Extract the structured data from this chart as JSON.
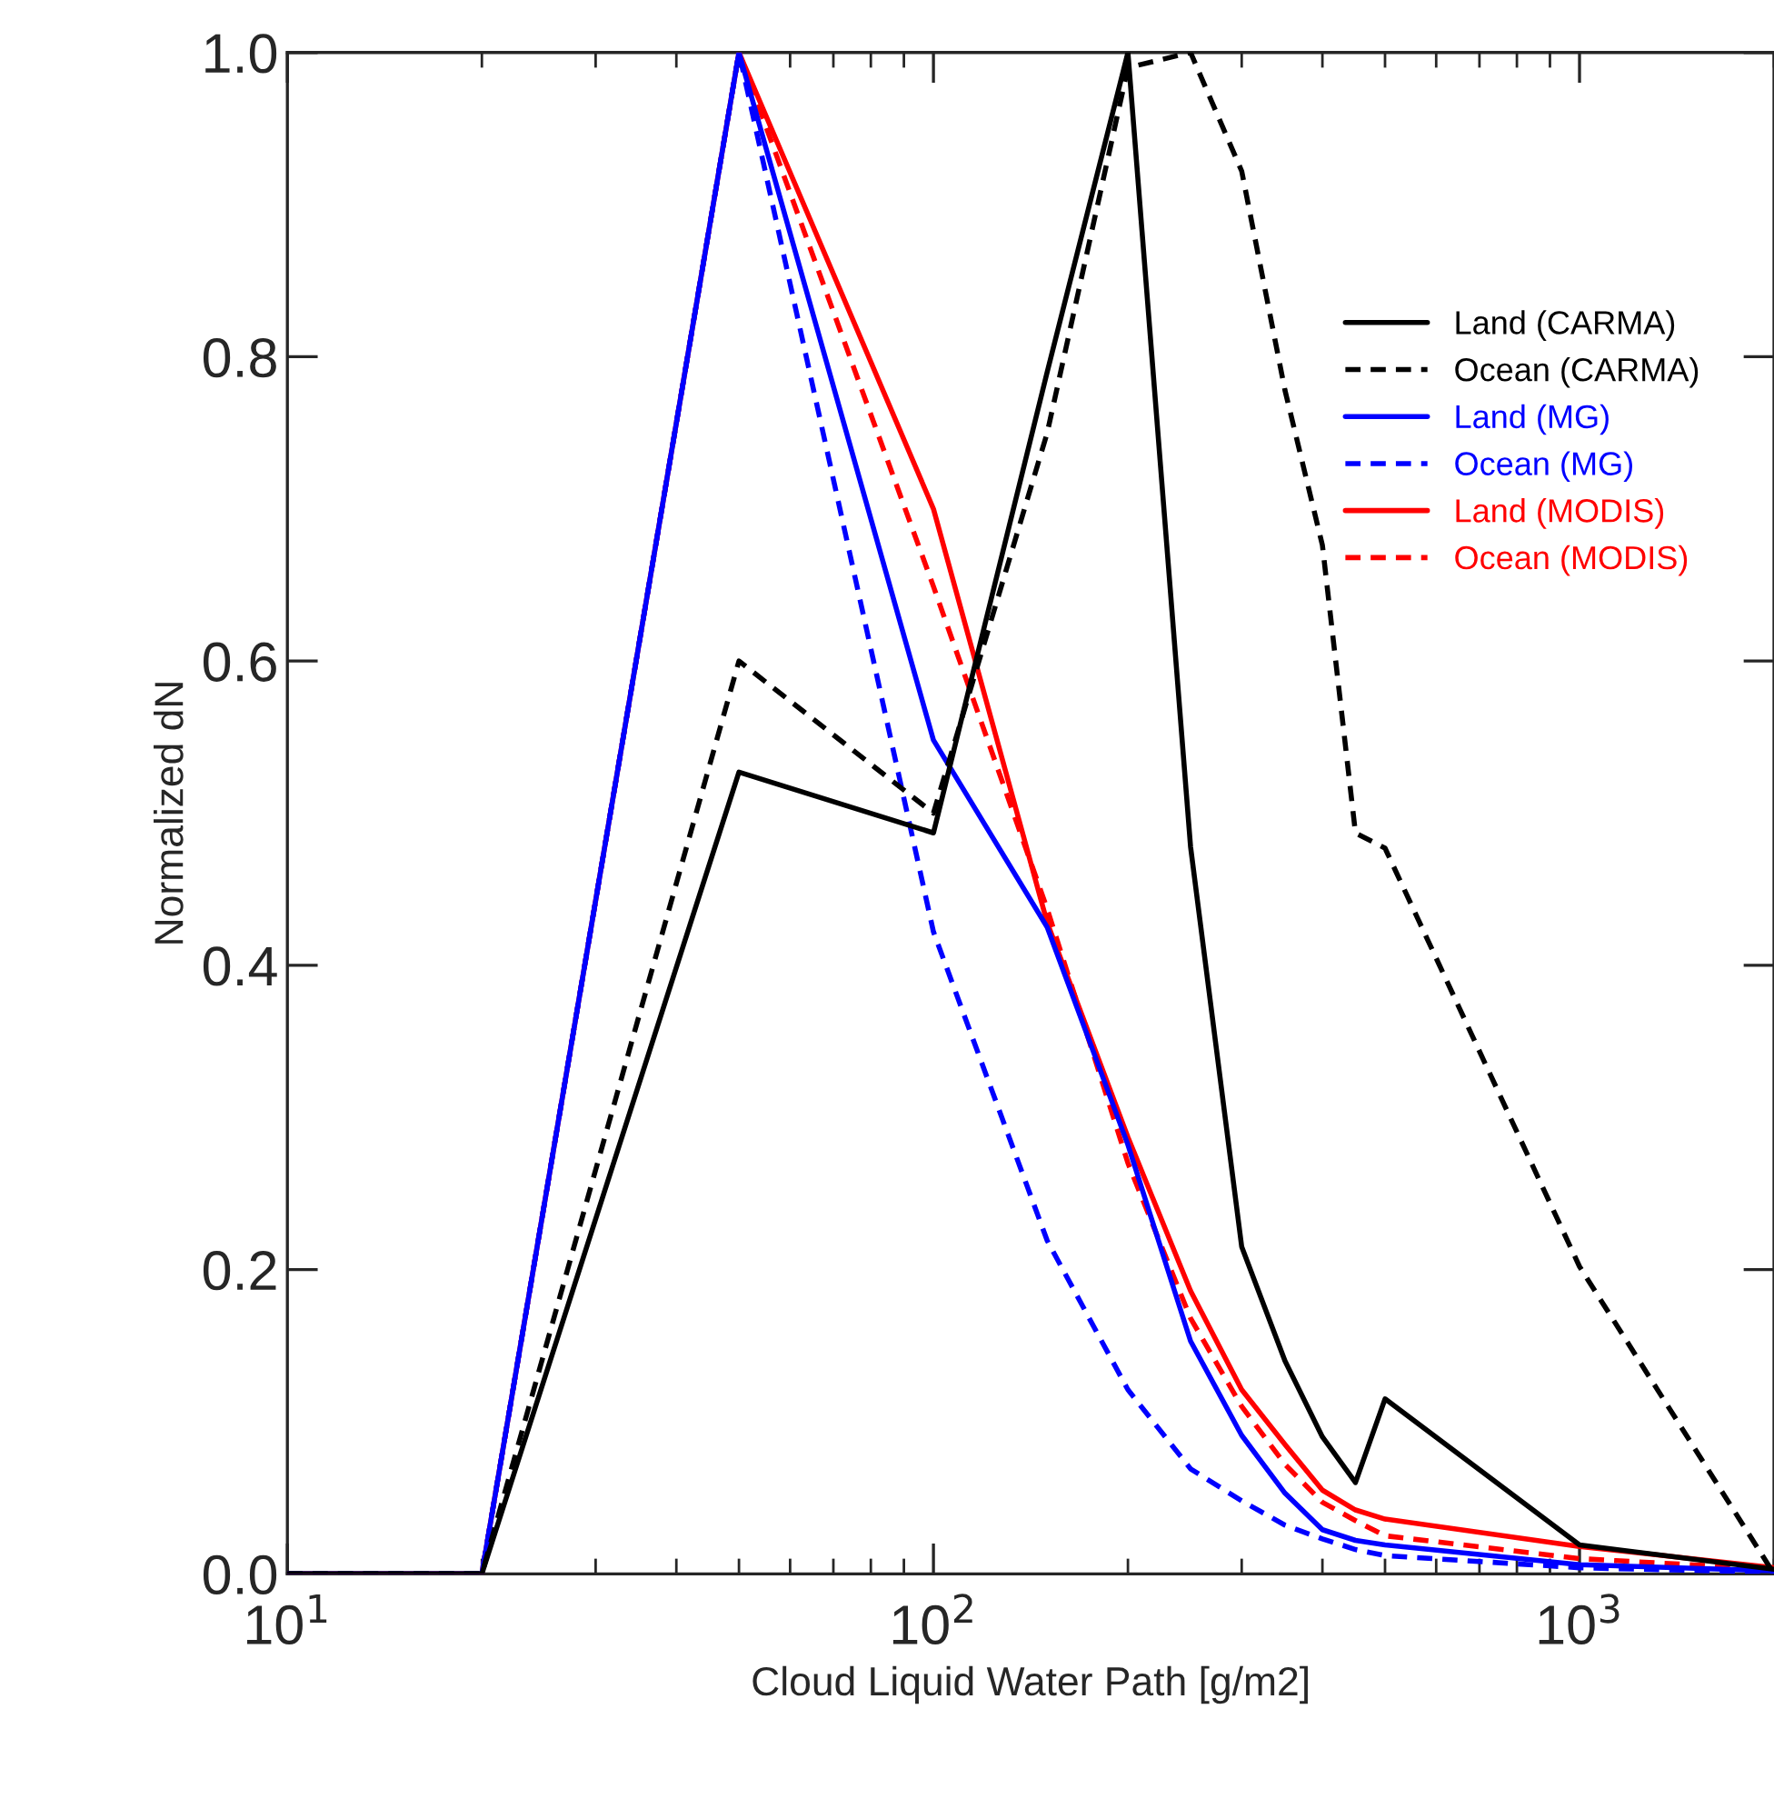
{
  "chart_data": {
    "type": "line",
    "xlabel": "Cloud Liquid Water Path [g/m2]",
    "ylabel": "Normalized dN",
    "log": "x",
    "xlim": [
      10,
      2000
    ],
    "xticks": [
      {
        "value": 10,
        "label": "10$^{1}$"
      },
      {
        "value": 100,
        "label": "10$^{2}$"
      },
      {
        "value": 1000,
        "label": "10$^{3}$"
      }
    ],
    "ylim": [
      0,
      1
    ],
    "yticks": [
      {
        "value": 0,
        "label": "0.0"
      },
      {
        "value": 0.2,
        "label": "0.2"
      },
      {
        "value": 0.4,
        "label": "0.4"
      },
      {
        "value": 0.6,
        "label": "0.6"
      },
      {
        "value": 0.8,
        "label": "0.8"
      },
      {
        "value": 1,
        "label": "1.0"
      }
    ],
    "x": [
      10,
      20,
      50,
      100,
      150,
      200,
      250,
      300,
      350,
      400,
      450,
      500,
      1000,
      2000
    ],
    "grid": false,
    "legend": "top right",
    "marker": "none",
    "series": [
      {
        "name": "Land (CARMA)",
        "color": "#000000",
        "line_style": "solid",
        "values": [
          0,
          0,
          0.527,
          0.487,
          0.79,
          1.0,
          0.478,
          0.215,
          0.14,
          0.09,
          0.06,
          0.115,
          0.019,
          0.003
        ]
      },
      {
        "name": "Ocean (CARMA)",
        "color": "#000000",
        "line_style": "dashed",
        "values": [
          0,
          0,
          0.6,
          0.5,
          0.75,
          0.99,
          1.0,
          0.922,
          0.778,
          0.676,
          0.487,
          0.477,
          0.202,
          0.0
        ]
      },
      {
        "name": "Land (MG)",
        "color": "#0000ff",
        "line_style": "solid",
        "values": [
          0,
          0,
          1.0,
          0.548,
          0.425,
          0.282,
          0.153,
          0.091,
          0.053,
          0.029,
          0.022,
          0.019,
          0.006,
          0.002
        ]
      },
      {
        "name": "Ocean (MG)",
        "color": "#0000ff",
        "line_style": "dashed",
        "values": [
          0,
          0,
          1.0,
          0.422,
          0.219,
          0.121,
          0.069,
          0.048,
          0.032,
          0.023,
          0.016,
          0.012,
          0.004,
          0.001
        ]
      },
      {
        "name": "Land (MODIS)",
        "color": "#ff0000",
        "line_style": "solid",
        "values": [
          0,
          0,
          1.0,
          0.7,
          0.428,
          0.287,
          0.186,
          0.121,
          0.085,
          0.055,
          0.042,
          0.036,
          0.018,
          0.004
        ]
      },
      {
        "name": "Ocean (MODIS)",
        "color": "#ff0000",
        "line_style": "dashed",
        "values": [
          0,
          0,
          1.0,
          0.649,
          0.437,
          0.27,
          0.168,
          0.11,
          0.072,
          0.047,
          0.035,
          0.025,
          0.01,
          0.003
        ]
      }
    ]
  }
}
